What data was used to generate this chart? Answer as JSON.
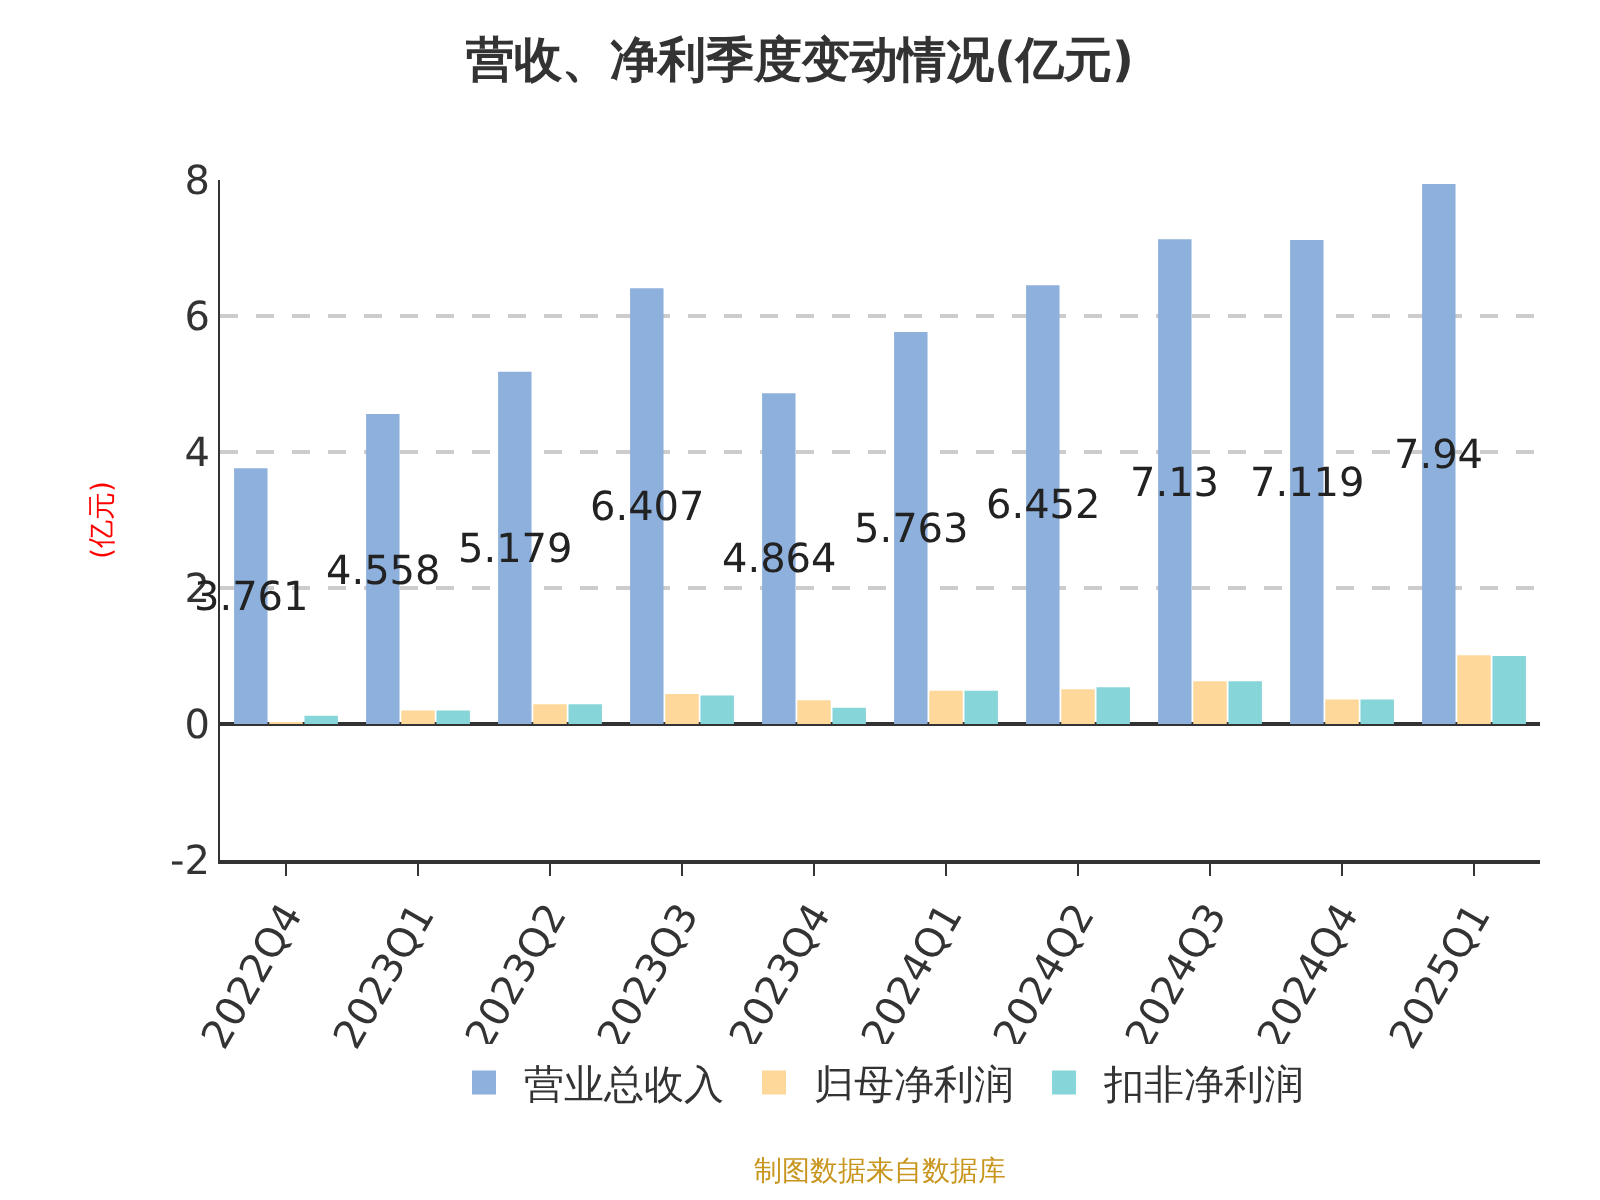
{
  "chart_data": {
    "type": "bar",
    "title": "营收、净利季度变动情况(亿元)",
    "ylabel": "(亿元)",
    "categories": [
      "2022Q4",
      "2023Q1",
      "2023Q2",
      "2023Q3",
      "2023Q4",
      "2024Q1",
      "2024Q2",
      "2024Q3",
      "2024Q4",
      "2025Q1"
    ],
    "series": [
      {
        "name": "营业总收入",
        "color": "#8eb0dc",
        "values": [
          3.761,
          4.558,
          5.179,
          6.407,
          4.864,
          5.763,
          6.452,
          7.13,
          7.119,
          7.94
        ],
        "value_labels": [
          "3.761",
          "4.558",
          "5.179",
          "6.407",
          "4.864",
          "5.763",
          "6.452",
          "7.13",
          "7.119",
          "7.94"
        ]
      },
      {
        "name": "归母净利润",
        "color": "#fed89a",
        "values": [
          0.01,
          0.2,
          0.29,
          0.44,
          0.35,
          0.49,
          0.51,
          0.63,
          0.36,
          1.01
        ]
      },
      {
        "name": "扣非净利润",
        "color": "#86d5d8",
        "values": [
          0.12,
          0.2,
          0.29,
          0.42,
          0.24,
          0.49,
          0.54,
          0.63,
          0.36,
          1.0
        ]
      }
    ],
    "ylim": [
      -2,
      8
    ],
    "yticks": [
      -2,
      0,
      2,
      4,
      6,
      8
    ],
    "grid": "y",
    "legend": "bottom",
    "annotations": [
      "制图数据来自数据库"
    ]
  }
}
